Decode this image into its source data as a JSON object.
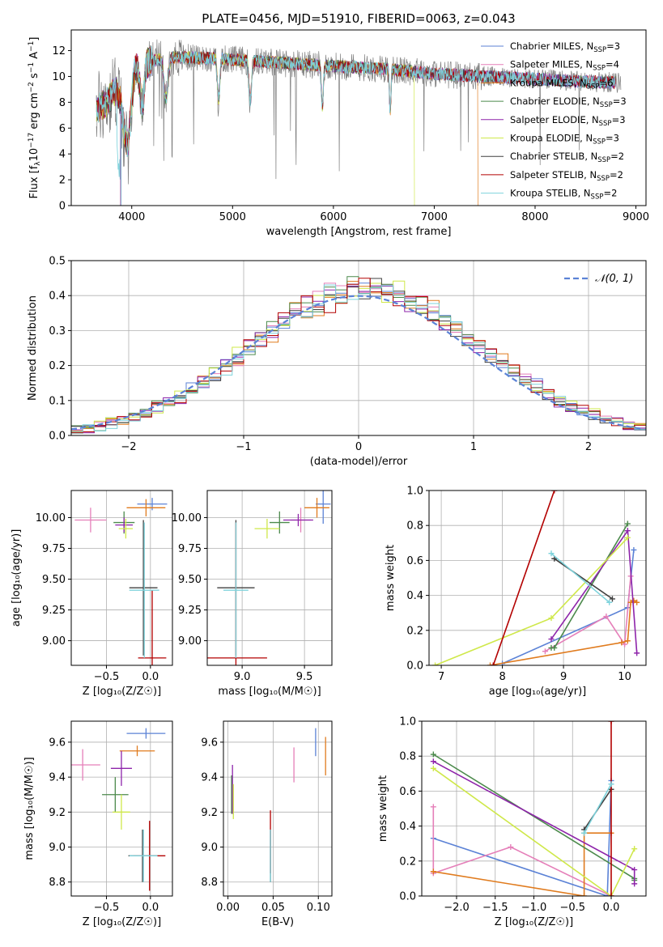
{
  "series_styles": [
    {
      "name": "Chabrier MILES, N$_{SSP}$=3",
      "label": "Chabrier MILES, N",
      "sub": "SSP",
      "count": "=3",
      "color": "#5b82d6"
    },
    {
      "name": "Salpeter MILES, N$_{SSP}$=4",
      "label": "Salpeter MILES, N",
      "sub": "SSP",
      "count": "=4",
      "color": "#e57fb9"
    },
    {
      "name": "Kroupa MILES, N$_{SSP}$=6",
      "label": "Kroupa MILES, N",
      "sub": "SSP",
      "count": "=6",
      "color": "#e07b1e"
    },
    {
      "name": "Chabrier ELODIE, N$_{SSP}$=3",
      "label": "Chabrier ELODIE, N",
      "sub": "SSP",
      "count": "=3",
      "color": "#4c8a4c"
    },
    {
      "name": "Salpeter ELODIE, N$_{SSP}$=3",
      "label": "Salpeter ELODIE, N",
      "sub": "SSP",
      "count": "=3",
      "color": "#8e24aa"
    },
    {
      "name": "Kroupa ELODIE, N$_{SSP}$=3",
      "label": "Kroupa ELODIE, N",
      "sub": "SSP",
      "count": "=3",
      "color": "#cfe84a"
    },
    {
      "name": "Chabrier STELIB, N$_{SSP}$=2",
      "label": "Chabrier STELIB, N",
      "sub": "SSP",
      "count": "=2",
      "color": "#404040"
    },
    {
      "name": "Salpeter STELIB, N$_{SSP}$=2",
      "label": "Salpeter STELIB, N",
      "sub": "SSP",
      "count": "=2",
      "color": "#b30000"
    },
    {
      "name": "Kroupa STELIB, N$_{SSP}$=2",
      "label": "Kroupa STELIB, N",
      "sub": "SSP",
      "count": "=2",
      "color": "#7ed3dc"
    }
  ],
  "chart_data": [
    {
      "id": "spectrum",
      "type": "line",
      "title": "PLATE=0456, MJD=51910, FIBERID=0063, z=0.043",
      "xlabel": "wavelength [Angstrom, rest frame]",
      "ylabel_parts": [
        "Flux [f",
        "λ",
        "10",
        "−17",
        " erg cm",
        "−2",
        " s",
        "−1",
        " A",
        "−1",
        "]"
      ],
      "xlim": [
        3400,
        9100
      ],
      "ylim": [
        0,
        13.6
      ],
      "xticks": [
        4000,
        5000,
        6000,
        7000,
        8000,
        9000
      ],
      "yticks": [
        0,
        2,
        4,
        6,
        8,
        10,
        12
      ],
      "data_color": "#808080",
      "continuum_points": [
        [
          3650,
          7.5
        ],
        [
          3750,
          8.0
        ],
        [
          3900,
          9.8
        ],
        [
          4000,
          10.8
        ],
        [
          4200,
          11.2
        ],
        [
          4400,
          11.5
        ],
        [
          4800,
          11.4
        ],
        [
          5200,
          11.2
        ],
        [
          5600,
          11.0
        ],
        [
          6000,
          10.8
        ],
        [
          6500,
          10.6
        ],
        [
          7000,
          10.2
        ],
        [
          7500,
          10.0
        ],
        [
          8000,
          9.8
        ],
        [
          8500,
          9.6
        ],
        [
          8850,
          9.5
        ]
      ],
      "model_ranges": [
        [
          3650,
          8800
        ],
        [
          3650,
          8800
        ],
        [
          3650,
          7430
        ],
        [
          3650,
          8800
        ],
        [
          3650,
          8800
        ],
        [
          3650,
          6800
        ],
        [
          3650,
          8800
        ],
        [
          3650,
          8800
        ],
        [
          3650,
          8800
        ]
      ],
      "legend_position": "upper right"
    },
    {
      "id": "residuals",
      "type": "histogram",
      "xlabel": "(data-model)/error",
      "ylabel": "Normed distribution",
      "xlim": [
        -2.5,
        2.5
      ],
      "ylim": [
        0,
        0.5
      ],
      "xticks": [
        -2,
        -1,
        0,
        1,
        2
      ],
      "xtick_labels": [
        "−2",
        "−1",
        "0",
        "1",
        "2"
      ],
      "yticks": [
        0,
        0.1,
        0.2,
        0.3,
        0.4,
        0.5
      ],
      "ytick_labels": [
        "0.0",
        "0.1",
        "0.2",
        "0.3",
        "0.4",
        "0.5"
      ],
      "bin_width": 0.1,
      "reference": {
        "label": "𝒩(0, 1)",
        "mean": 0,
        "sigma": 1,
        "color": "#5b82d6"
      },
      "grid": true,
      "legend_position": "upper right"
    },
    {
      "id": "age_vs_Z",
      "type": "errorbar",
      "xlabel": "Z [log₁₀(Z/Z☉)]",
      "ylabel": "age  [log₁₀(age/yr)]",
      "xlim": [
        -0.9,
        0.25
      ],
      "ylim": [
        8.8,
        10.22
      ],
      "xticks": [
        -0.5,
        0.0
      ],
      "xtick_labels": [
        "−0.5",
        "0.0"
      ],
      "yticks": [
        9.0,
        9.25,
        9.5,
        9.75,
        10.0
      ],
      "ytick_labels": [
        "9.00",
        "9.25",
        "9.50",
        "9.75",
        "10.00"
      ],
      "grid": true,
      "points": [
        {
          "series": 0,
          "x": 0.02,
          "xerr": 0.17,
          "y": 10.11,
          "yerr": 0.05
        },
        {
          "series": 1,
          "x": -0.68,
          "xerr": 0.18,
          "y": 9.98,
          "yerr": 0.1
        },
        {
          "series": 2,
          "x": -0.05,
          "xerr": 0.22,
          "y": 10.08,
          "yerr": 0.07
        },
        {
          "series": 3,
          "x": -0.3,
          "xerr": 0.12,
          "y": 9.96,
          "yerr": 0.09
        },
        {
          "series": 4,
          "x": -0.3,
          "xerr": 0.1,
          "y": 9.94,
          "yerr": 0.06
        },
        {
          "series": 5,
          "x": -0.28,
          "xerr": 0.08,
          "y": 9.91,
          "yerr": 0.08
        },
        {
          "series": 6,
          "x": -0.08,
          "xerr": 0.16,
          "y": 9.43,
          "yerr": 0.55
        },
        {
          "series": 7,
          "x": 0.02,
          "xerr": 0.16,
          "y": 8.86,
          "yerr": 0.55
        },
        {
          "series": 8,
          "x": -0.07,
          "xerr": 0.17,
          "y": 9.41,
          "yerr": 0.55
        }
      ]
    },
    {
      "id": "age_vs_mass",
      "type": "errorbar",
      "xlabel": "mass [log₁₀(M/M☉)]",
      "ylabel": "",
      "xlim": [
        8.72,
        9.72
      ],
      "ylim": [
        8.8,
        10.22
      ],
      "xticks": [
        9.0,
        9.5
      ],
      "xtick_labels": [
        "9.0",
        "9.5"
      ],
      "yticks": [
        9.0,
        9.25,
        9.5,
        9.75,
        10.0
      ],
      "ytick_labels": [
        "9.00",
        "9.25",
        "9.50",
        "9.75",
        "10.00"
      ],
      "grid": true,
      "points": [
        {
          "series": 0,
          "x": 9.65,
          "xerr": 0.06,
          "y": 10.11,
          "yerr": 0.16
        },
        {
          "series": 1,
          "x": 9.47,
          "xerr": 0.08,
          "y": 9.98,
          "yerr": 0.1
        },
        {
          "series": 2,
          "x": 9.6,
          "xerr": 0.1,
          "y": 10.08,
          "yerr": 0.08
        },
        {
          "series": 3,
          "x": 9.3,
          "xerr": 0.08,
          "y": 9.96,
          "yerr": 0.09
        },
        {
          "series": 4,
          "x": 9.45,
          "xerr": 0.12,
          "y": 9.98,
          "yerr": 0.05
        },
        {
          "series": 5,
          "x": 9.2,
          "xerr": 0.1,
          "y": 9.91,
          "yerr": 0.08
        },
        {
          "series": 6,
          "x": 8.95,
          "xerr": 0.15,
          "y": 9.43,
          "yerr": 0.55
        },
        {
          "series": 7,
          "x": 8.95,
          "xerr": 0.25,
          "y": 8.86,
          "yerr": 1.1
        },
        {
          "series": 8,
          "x": 8.95,
          "xerr": 0.1,
          "y": 9.41,
          "yerr": 0.55
        }
      ]
    },
    {
      "id": "weight_vs_age",
      "type": "line",
      "xlabel": "age  [log₁₀(age/yr)]",
      "ylabel": "mass weight",
      "xlim": [
        6.8,
        10.35
      ],
      "ylim": [
        0,
        1.0
      ],
      "xticks": [
        7,
        8,
        9,
        10
      ],
      "yticks": [
        0,
        0.2,
        0.4,
        0.6,
        0.8,
        1.0
      ],
      "ytick_labels": [
        "0.0",
        "0.2",
        "0.4",
        "0.6",
        "0.8",
        "1.0"
      ],
      "grid": true,
      "series": [
        {
          "series": 0,
          "x": [
            8.0,
            10.05,
            10.15
          ],
          "y": [
            0.01,
            0.33,
            0.66
          ]
        },
        {
          "series": 1,
          "x": [
            8.7,
            9.7,
            10.0,
            10.1
          ],
          "y": [
            0.08,
            0.28,
            0.12,
            0.51
          ]
        },
        {
          "series": 2,
          "x": [
            7.8,
            9.95,
            10.05,
            10.1,
            10.15,
            10.2
          ],
          "y": [
            0.0,
            0.13,
            0.14,
            0.36,
            0.37,
            0.36
          ]
        },
        {
          "series": 3,
          "x": [
            8.8,
            8.85,
            10.05
          ],
          "y": [
            0.1,
            0.1,
            0.81
          ]
        },
        {
          "series": 4,
          "x": [
            8.8,
            10.05,
            10.2
          ],
          "y": [
            0.15,
            0.77,
            0.07
          ]
        },
        {
          "series": 5,
          "x": [
            6.9,
            8.8,
            10.05
          ],
          "y": [
            0.0,
            0.27,
            0.73
          ]
        },
        {
          "series": 6,
          "x": [
            8.85,
            9.8
          ],
          "y": [
            0.61,
            0.38
          ]
        },
        {
          "series": 7,
          "x": [
            7.85,
            8.85
          ],
          "y": [
            0.0,
            1.0
          ]
        },
        {
          "series": 8,
          "x": [
            8.8,
            9.75
          ],
          "y": [
            0.64,
            0.36
          ]
        }
      ]
    },
    {
      "id": "mass_vs_Z",
      "type": "errorbar",
      "xlabel": "Z [log₁₀(Z/Z☉)]",
      "ylabel": "mass [log₁₀(M/M☉)]",
      "xlim": [
        -0.9,
        0.25
      ],
      "ylim": [
        8.72,
        9.72
      ],
      "xticks": [
        -0.5,
        0.0
      ],
      "xtick_labels": [
        "−0.5",
        "0.0"
      ],
      "yticks": [
        8.8,
        9.0,
        9.2,
        9.4,
        9.6
      ],
      "ytick_labels": [
        "8.8",
        "9.0",
        "9.2",
        "9.4",
        "9.6"
      ],
      "grid": true,
      "points": [
        {
          "series": 0,
          "x": -0.05,
          "xerr": 0.22,
          "y": 9.65,
          "yerr": 0.03
        },
        {
          "series": 1,
          "x": -0.77,
          "xerr": 0.2,
          "y": 9.47,
          "yerr": 0.09
        },
        {
          "series": 2,
          "x": -0.15,
          "xerr": 0.2,
          "y": 9.55,
          "yerr": 0.03
        },
        {
          "series": 3,
          "x": -0.4,
          "xerr": 0.15,
          "y": 9.3,
          "yerr": 0.1
        },
        {
          "series": 4,
          "x": -0.33,
          "xerr": 0.12,
          "y": 9.45,
          "yerr": 0.1
        },
        {
          "series": 5,
          "x": -0.33,
          "xerr": 0.1,
          "y": 9.2,
          "yerr": 0.1
        },
        {
          "series": 6,
          "x": -0.09,
          "xerr": 0.16,
          "y": 8.95,
          "yerr": 0.15
        },
        {
          "series": 7,
          "x": -0.01,
          "xerr": 0.18,
          "y": 8.95,
          "yerr": 0.2
        },
        {
          "series": 8,
          "x": -0.08,
          "xerr": 0.16,
          "y": 8.95,
          "yerr": 0.15
        }
      ]
    },
    {
      "id": "mass_vs_ebv",
      "type": "errorbar",
      "xlabel": "E(B-V)",
      "ylabel": "",
      "xlim": [
        -0.005,
        0.115
      ],
      "ylim": [
        8.72,
        9.72
      ],
      "xticks": [
        0.0,
        0.05,
        0.1
      ],
      "xtick_labels": [
        "0.00",
        "0.05",
        "0.10"
      ],
      "yticks": [
        8.8,
        9.0,
        9.2,
        9.4,
        9.6
      ],
      "ytick_labels": [
        "8.8",
        "9.0",
        "9.2",
        "9.4",
        "9.6"
      ],
      "grid": true,
      "points": [
        {
          "series": 0,
          "x": 0.097,
          "xerr": 0,
          "y": 9.6,
          "yerr": 0.08
        },
        {
          "series": 1,
          "x": 0.073,
          "xerr": 0,
          "y": 9.47,
          "yerr": 0.1
        },
        {
          "series": 2,
          "x": 0.108,
          "xerr": 0,
          "y": 9.52,
          "yerr": 0.11
        },
        {
          "series": 3,
          "x": 0.004,
          "xerr": 0,
          "y": 9.3,
          "yerr": 0.11
        },
        {
          "series": 4,
          "x": 0.005,
          "xerr": 0,
          "y": 9.33,
          "yerr": 0.14
        },
        {
          "series": 5,
          "x": 0.006,
          "xerr": 0,
          "y": 9.26,
          "yerr": 0.1
        },
        {
          "series": 6,
          "x": 0.047,
          "xerr": 0,
          "y": 8.95,
          "yerr": 0.15
        },
        {
          "series": 7,
          "x": 0.047,
          "xerr": 0,
          "y": 9.03,
          "yerr": 0.18
        },
        {
          "series": 8,
          "x": 0.047,
          "xerr": 0,
          "y": 8.95,
          "yerr": 0.15
        }
      ]
    },
    {
      "id": "weight_vs_Z",
      "type": "line",
      "xlabel": "Z [log₁₀(Z/Z☉)]",
      "ylabel": "mass weight",
      "xlim": [
        -2.45,
        0.45
      ],
      "ylim": [
        0,
        1.0
      ],
      "xticks": [
        -2.0,
        -1.5,
        -1.0,
        -0.5,
        0.0
      ],
      "xtick_labels": [
        "−2.0",
        "−1.5",
        "−1.0",
        "−0.5",
        "0.0"
      ],
      "yticks": [
        0,
        0.2,
        0.4,
        0.6,
        0.8,
        1.0
      ],
      "ytick_labels": [
        "0.0",
        "0.2",
        "0.4",
        "0.6",
        "0.8",
        "1.0"
      ],
      "grid": true,
      "series": [
        {
          "series": 0,
          "x": [
            -2.3,
            -0.05,
            0.0
          ],
          "y": [
            0.33,
            0.0,
            0.66
          ]
        },
        {
          "series": 1,
          "x": [
            -2.3,
            -2.3,
            -1.3,
            0.0
          ],
          "y": [
            0.51,
            0.13,
            0.28,
            0.0
          ]
        },
        {
          "series": 2,
          "x": [
            -2.3,
            -0.35,
            -0.35,
            0.0
          ],
          "y": [
            0.14,
            0.0,
            0.36,
            0.36
          ]
        },
        {
          "series": 3,
          "x": [
            -2.3,
            0.3,
            0.3
          ],
          "y": [
            0.81,
            0.1,
            0.09
          ]
        },
        {
          "series": 4,
          "x": [
            -2.3,
            0.3,
            0.3
          ],
          "y": [
            0.77,
            0.15,
            0.07
          ]
        },
        {
          "series": 5,
          "x": [
            -2.3,
            0.0,
            0.3
          ],
          "y": [
            0.73,
            0.0,
            0.27
          ]
        },
        {
          "series": 6,
          "x": [
            -0.35,
            0.0
          ],
          "y": [
            0.38,
            0.61
          ]
        },
        {
          "series": 7,
          "x": [
            0.0,
            0.0
          ],
          "y": [
            0.0,
            1.0
          ]
        },
        {
          "series": 8,
          "x": [
            -0.35,
            0.0
          ],
          "y": [
            0.36,
            0.64
          ]
        }
      ]
    }
  ]
}
